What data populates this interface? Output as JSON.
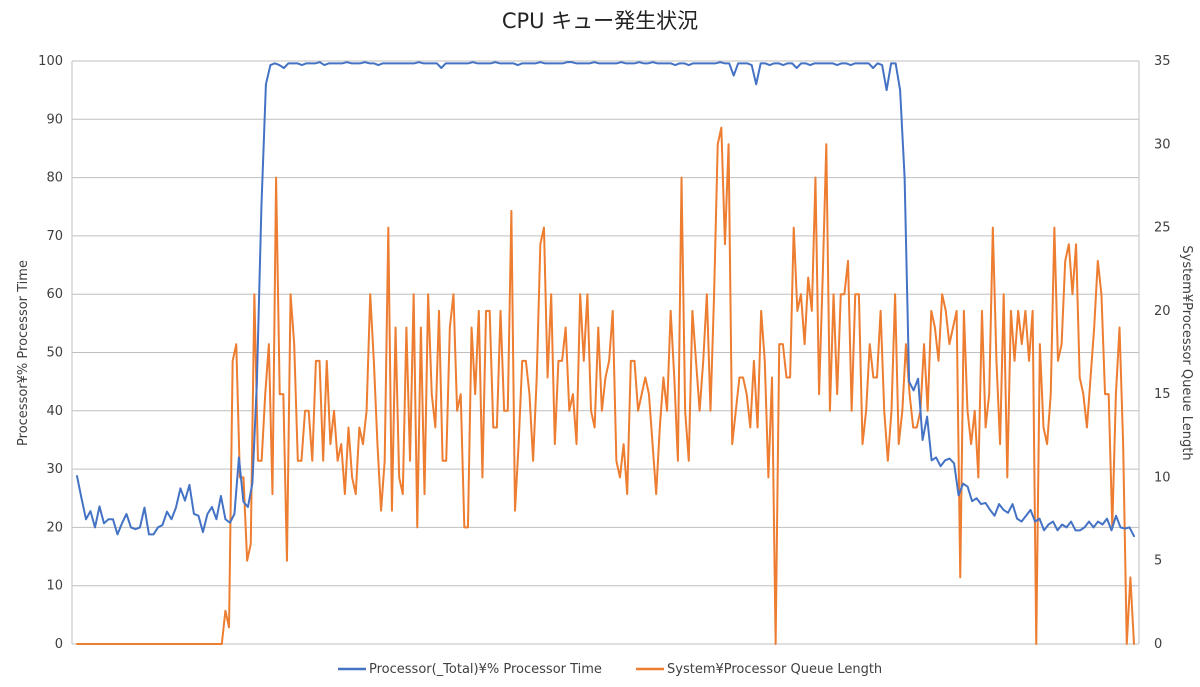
{
  "chart_data": {
    "type": "line",
    "title": "CPU キュー発生状況",
    "ylabel_left": "Processor¥% Processor Time",
    "ylabel_right": "System¥Processor Queue Length",
    "ylim_left": [
      0,
      100
    ],
    "ylim_right": [
      0,
      35
    ],
    "yticks_left": [
      0,
      10,
      20,
      30,
      40,
      50,
      60,
      70,
      80,
      90,
      100
    ],
    "yticks_right": [
      0,
      5,
      10,
      15,
      20,
      25,
      30,
      35
    ],
    "x_tick_labels": "none",
    "grid": true,
    "legend_position": "bottom",
    "series": [
      {
        "name": "Processor(_Total)¥% Processor Time",
        "axis": "left",
        "color": "#4472C4",
        "values": [
          28.8,
          25.0,
          21.4,
          22.8,
          20.0,
          23.6,
          20.7,
          21.4,
          21.4,
          18.8,
          20.7,
          22.3,
          20.0,
          19.7,
          20.0,
          23.4,
          18.8,
          18.8,
          20.0,
          20.4,
          22.7,
          21.4,
          23.4,
          26.7,
          24.6,
          27.3,
          22.3,
          22.0,
          19.2,
          22.3,
          23.5,
          21.4,
          25.4,
          21.4,
          20.8,
          22.3,
          32.0,
          24.4,
          23.5,
          27.6,
          45.0,
          75.0,
          96.0,
          99.3,
          99.6,
          99.3,
          98.8,
          99.6,
          99.6,
          99.6,
          99.3,
          99.6,
          99.6,
          99.6,
          99.8,
          99.3,
          99.6,
          99.6,
          99.6,
          99.6,
          99.8,
          99.6,
          99.6,
          99.6,
          99.8,
          99.6,
          99.6,
          99.3,
          99.6,
          99.6,
          99.6,
          99.6,
          99.6,
          99.6,
          99.6,
          99.6,
          99.8,
          99.6,
          99.6,
          99.6,
          99.6,
          98.8,
          99.6,
          99.6,
          99.6,
          99.6,
          99.6,
          99.6,
          99.8,
          99.6,
          99.6,
          99.6,
          99.6,
          99.8,
          99.6,
          99.6,
          99.6,
          99.6,
          99.3,
          99.6,
          99.6,
          99.6,
          99.6,
          99.8,
          99.6,
          99.6,
          99.6,
          99.6,
          99.6,
          99.8,
          99.8,
          99.6,
          99.6,
          99.6,
          99.6,
          99.8,
          99.6,
          99.6,
          99.6,
          99.6,
          99.6,
          99.8,
          99.6,
          99.6,
          99.6,
          99.8,
          99.6,
          99.6,
          99.8,
          99.6,
          99.6,
          99.6,
          99.6,
          99.3,
          99.6,
          99.6,
          99.3,
          99.6,
          99.6,
          99.6,
          99.6,
          99.6,
          99.6,
          99.8,
          99.6,
          99.6,
          97.5,
          99.6,
          99.6,
          99.6,
          99.3,
          96.0,
          99.6,
          99.6,
          99.3,
          99.6,
          99.6,
          99.3,
          99.6,
          99.6,
          98.8,
          99.6,
          99.6,
          99.3,
          99.6,
          99.6,
          99.6,
          99.6,
          99.6,
          99.3,
          99.6,
          99.6,
          99.3,
          99.6,
          99.6,
          99.6,
          99.6,
          98.8,
          99.6,
          99.3,
          95.0,
          99.6,
          99.6,
          95.0,
          80.0,
          45.0,
          43.5,
          45.5,
          35.0,
          39.0,
          31.5,
          32.0,
          30.5,
          31.5,
          31.8,
          31.0,
          25.5,
          27.5,
          27.0,
          24.5,
          25.0,
          24.0,
          24.2,
          23.0,
          22.0,
          24.0,
          23.0,
          22.5,
          24.0,
          21.5,
          21.0,
          22.0,
          23.0,
          21.0,
          21.5,
          19.5,
          20.5,
          21.0,
          19.5,
          20.5,
          20.0,
          21.0,
          19.5,
          19.5,
          20.0,
          21.0,
          20.0,
          21.0,
          20.5,
          21.5,
          19.5,
          22.0,
          20.0,
          19.8,
          20.0,
          18.5
        ]
      },
      {
        "name": "System¥Processor Queue Length",
        "axis": "right",
        "color": "#ED7D31",
        "values": [
          0,
          0,
          0,
          0,
          0,
          0,
          0,
          0,
          0,
          0,
          0,
          0,
          0,
          0,
          0,
          0,
          0,
          0,
          0,
          0,
          0,
          0,
          0,
          0,
          0,
          0,
          0,
          0,
          0,
          0,
          0,
          0,
          0,
          0,
          0,
          0,
          0,
          0,
          0,
          0,
          0,
          2,
          1,
          17,
          18,
          10,
          10,
          5,
          6,
          21,
          11,
          11,
          15,
          18,
          9,
          28,
          15,
          15,
          5,
          21,
          18,
          11,
          11,
          14,
          14,
          11,
          17,
          17,
          11,
          17,
          12,
          14,
          11,
          12,
          9,
          13,
          10,
          9,
          13,
          12,
          14,
          21,
          17,
          12,
          8,
          11,
          25,
          8,
          19,
          10,
          9,
          19,
          11,
          21,
          7,
          19,
          9,
          21,
          15,
          13,
          20,
          11,
          11,
          19,
          21,
          14,
          15,
          7,
          7,
          19,
          15,
          20,
          10,
          20,
          20,
          13,
          13,
          20,
          14,
          14,
          26,
          8,
          12,
          17,
          17,
          15,
          11,
          16,
          24,
          25,
          16,
          21,
          12,
          17,
          17,
          19,
          14,
          15,
          12,
          21,
          17,
          21,
          14,
          13,
          19,
          14,
          16,
          17,
          20,
          11,
          10,
          12,
          9,
          17,
          17,
          14,
          15,
          16,
          15,
          12,
          9,
          13,
          16,
          14,
          20,
          16,
          11,
          28,
          14,
          11,
          20,
          17,
          14,
          17,
          21,
          14,
          21,
          30,
          31,
          24,
          30,
          12,
          14,
          16,
          16,
          15,
          13,
          17,
          13,
          20,
          17,
          10,
          16,
          0,
          18,
          18,
          16,
          16,
          25,
          20,
          21,
          18,
          22,
          20,
          28,
          15,
          22,
          30,
          14,
          21,
          15,
          21,
          21,
          23,
          14,
          21,
          21,
          12,
          14,
          18,
          16,
          16,
          20,
          14,
          11,
          14,
          21,
          12,
          14,
          18,
          15,
          13,
          13,
          14,
          18,
          14,
          20,
          19,
          17,
          21,
          20,
          18,
          19,
          20,
          4,
          20,
          14,
          12,
          14,
          10,
          20,
          13,
          15,
          25,
          17,
          12,
          21,
          10,
          20,
          17,
          20,
          18,
          20,
          17,
          20,
          0,
          18,
          13,
          12,
          15,
          25,
          17,
          18,
          23,
          24,
          21,
          24,
          16,
          15,
          13,
          16,
          19,
          23,
          21,
          15,
          15,
          7,
          15,
          19,
          12,
          0,
          4,
          0
        ]
      }
    ]
  }
}
